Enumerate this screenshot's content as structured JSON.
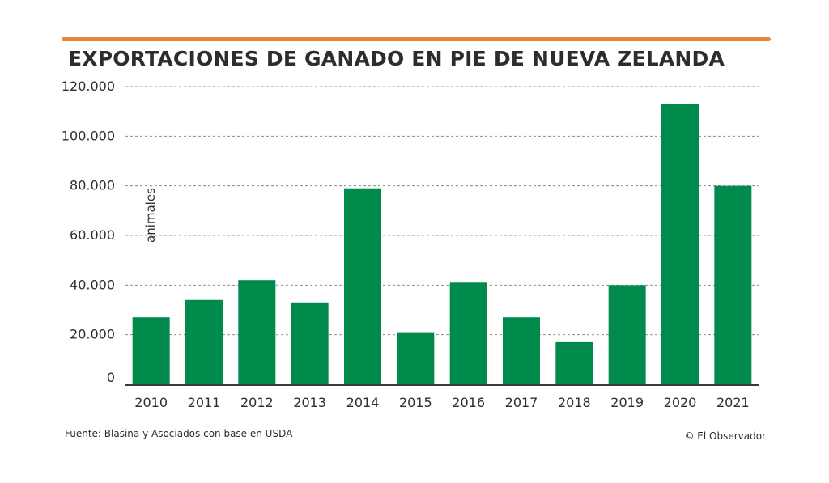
{
  "header": {
    "title": "EXPORTACIONES DE GANADO EN PIE DE NUEVA ZELANDA"
  },
  "footer": {
    "source": "Fuente: Blasina y Asociados con base en USDA",
    "credit": "© El Observador"
  },
  "colors": {
    "accent_rule": "#e8873a",
    "bar": "#008a4b",
    "text": "#2d2d2d",
    "grid": "#8c8c8c"
  },
  "chart_data": {
    "type": "bar",
    "title": "EXPORTACIONES DE GANADO EN PIE DE NUEVA ZELANDA",
    "xlabel": "",
    "ylabel": "animales",
    "categories": [
      "2010",
      "2011",
      "2012",
      "2013",
      "2014",
      "2015",
      "2016",
      "2017",
      "2018",
      "2019",
      "2020",
      "2021"
    ],
    "values": [
      27000,
      34000,
      42000,
      33000,
      79000,
      21000,
      41000,
      27000,
      17000,
      40000,
      113000,
      80000
    ],
    "ylim": [
      0,
      120000
    ],
    "yticks": [
      0,
      20000,
      40000,
      60000,
      80000,
      100000,
      120000
    ],
    "ytick_labels": [
      "0",
      "20.000",
      "40.000",
      "60.000",
      "80.000",
      "100.000",
      "120.000"
    ],
    "grid": true,
    "grid_style": "dashed",
    "legend": "none"
  }
}
